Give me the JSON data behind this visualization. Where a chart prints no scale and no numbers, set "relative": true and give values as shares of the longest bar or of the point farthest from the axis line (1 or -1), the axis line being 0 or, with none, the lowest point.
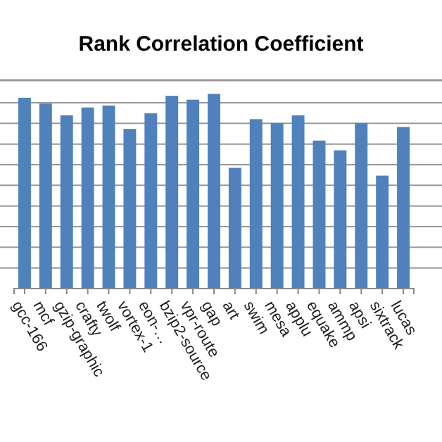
{
  "chart_data": {
    "type": "bar",
    "title": "Rank Correlation Coefficient",
    "relative": true,
    "grid": true,
    "color": "#4f81bd",
    "categories": [
      "gcc-166",
      "mcf",
      "gzip-graphic",
      "crafty",
      "twolf",
      "vortex-1",
      "eon-…",
      "bzip2-source",
      "vpr-route",
      "gap",
      "art",
      "swim",
      "mesa",
      "applu",
      "equake",
      "ammp",
      "apsi",
      "sixtrack",
      "lucas"
    ],
    "values": [
      0.98,
      0.95,
      0.89,
      0.93,
      0.94,
      0.82,
      0.9,
      0.99,
      0.97,
      1,
      0.62,
      0.87,
      0.85,
      0.89,
      0.76,
      0.71,
      0.85,
      0.58,
      0.83
    ]
  }
}
